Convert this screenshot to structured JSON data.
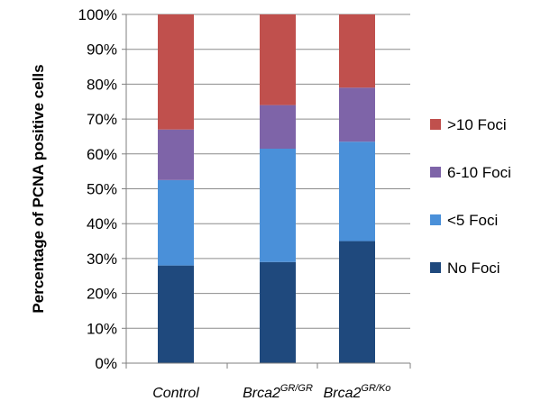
{
  "chart_data": {
    "type": "bar",
    "stacked": true,
    "ylabel": "Percentage of PCNA positive cells",
    "ylim": [
      0,
      100
    ],
    "yticks": [
      "0%",
      "10%",
      "20%",
      "30%",
      "40%",
      "50%",
      "60%",
      "70%",
      "80%",
      "90%",
      "100%"
    ],
    "grid": true,
    "legend_position": "right",
    "categories": [
      {
        "base": "Control",
        "sup": ""
      },
      {
        "base": "Brca2",
        "sup": "GR/GR"
      },
      {
        "base": "Brca2",
        "sup": "GR/Ko"
      }
    ],
    "series": [
      {
        "name": "No Foci",
        "color": "#1F497D",
        "values": [
          28,
          29,
          35
        ]
      },
      {
        "name": "<5 Foci",
        "color": "#4A90D9",
        "values": [
          24.5,
          32.5,
          28.5
        ]
      },
      {
        "name": "6-10 Foci",
        "color": "#7E64A8",
        "values": [
          14.5,
          12.5,
          15.5
        ]
      },
      {
        "name": ">10 Foci",
        "color": "#C0504D",
        "values": [
          33,
          26,
          21
        ]
      }
    ]
  }
}
